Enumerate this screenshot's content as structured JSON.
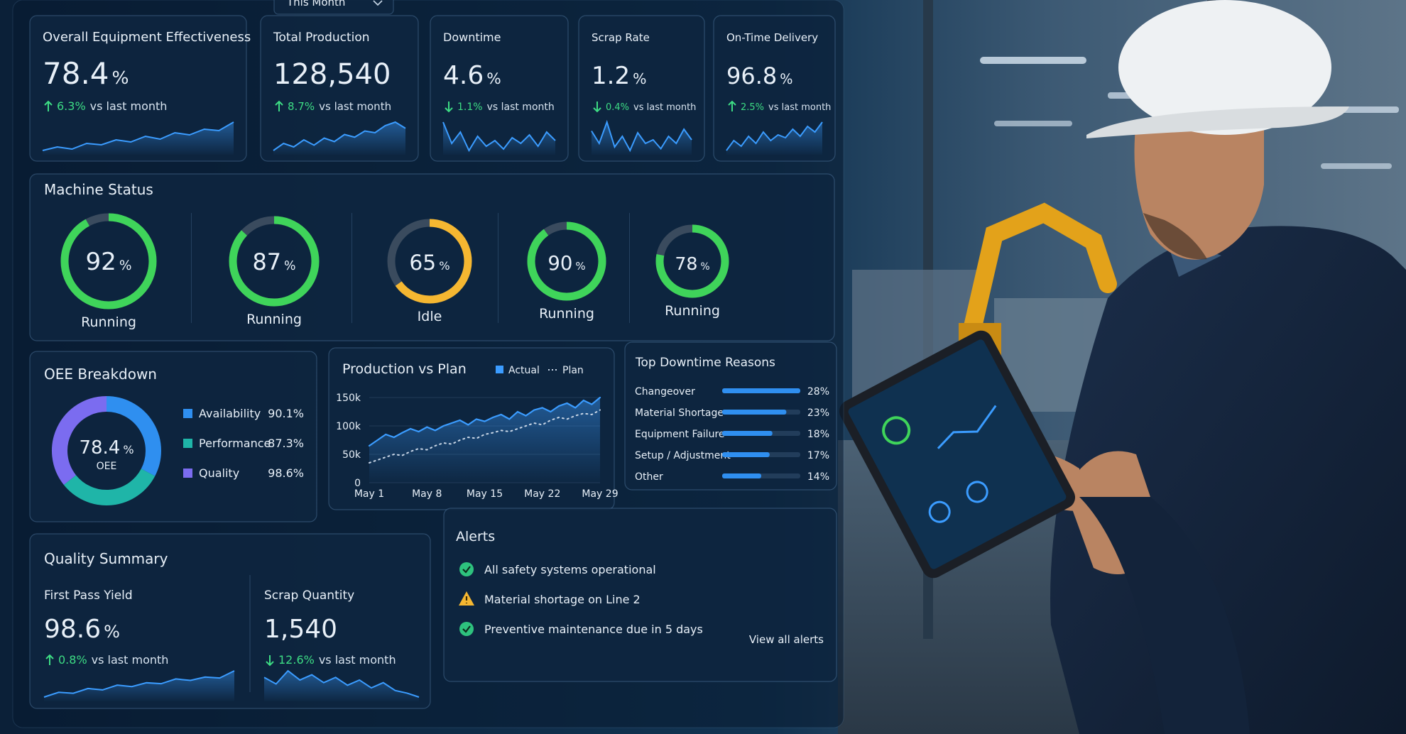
{
  "filter": "This Month",
  "kpis": [
    {
      "title": "Overall Equipment Effectiveness",
      "value": "78.4",
      "unit": "%",
      "change": "6.3%",
      "direction": "up",
      "note": "vs last month",
      "spark": [
        30,
        35,
        32,
        40,
        38,
        45,
        42,
        50,
        46,
        55,
        52,
        60,
        58,
        70
      ]
    },
    {
      "title": "Total Production",
      "value": "128,540",
      "change": "8.7%",
      "direction": "up",
      "note": "vs last month",
      "spark": [
        30,
        38,
        34,
        42,
        36,
        44,
        40,
        48,
        45,
        52,
        50,
        58,
        62,
        55
      ]
    },
    {
      "title": "Downtime",
      "value": "4.6",
      "unit": "%",
      "change": "1.1%",
      "direction": "down",
      "note": "vs last month",
      "spark": [
        55,
        40,
        48,
        35,
        45,
        38,
        42,
        36,
        44,
        40,
        46,
        38,
        48,
        42
      ]
    },
    {
      "title": "Scrap Rate",
      "value": "1.2",
      "unit": "%",
      "change": "0.4%",
      "direction": "down",
      "note": "vs last month",
      "spark": [
        45,
        38,
        50,
        36,
        42,
        34,
        44,
        38,
        40,
        35,
        42,
        38,
        46,
        40
      ]
    },
    {
      "title": "On-Time Delivery",
      "value": "96.8",
      "unit": "%",
      "change": "2.5%",
      "direction": "up",
      "note": "vs last month",
      "spark": [
        35,
        42,
        38,
        45,
        40,
        48,
        42,
        46,
        44,
        50,
        45,
        52,
        48,
        55
      ]
    }
  ],
  "machine_status": {
    "title": "Machine Status",
    "machines": [
      {
        "value": 92,
        "unit": "%",
        "status": "Running",
        "color": "#3fd45a"
      },
      {
        "value": 87,
        "unit": "%",
        "status": "Running",
        "color": "#3fd45a"
      },
      {
        "value": 65,
        "unit": "%",
        "status": "Idle",
        "color": "#f5b731"
      },
      {
        "value": 90,
        "unit": "%",
        "status": "Running",
        "color": "#3fd45a"
      },
      {
        "value": 78,
        "unit": "%",
        "status": "Running",
        "color": "#3fd45a"
      }
    ]
  },
  "oee_breakdown": {
    "title": "OEE Breakdown",
    "center_value": "78.4",
    "center_unit": "%",
    "center_label": "OEE",
    "items": [
      {
        "name": "Availability",
        "value": 90.1,
        "value_label": "90.1%",
        "color": "#2f8ff0"
      },
      {
        "name": "Performance",
        "value": 87.3,
        "value_label": "87.3%",
        "color": "#1fb5a8"
      },
      {
        "name": "Quality",
        "value": 98.6,
        "value_label": "98.6%",
        "color": "#7b6cf0"
      }
    ]
  },
  "production_vs_plan": {
    "chart_data": {
      "type": "line",
      "title": "Production vs Plan",
      "categories": [
        "May 1",
        null,
        null,
        null,
        null,
        null,
        null,
        "May 8",
        null,
        null,
        null,
        null,
        null,
        null,
        "May 15",
        null,
        null,
        null,
        null,
        null,
        null,
        "May 22",
        null,
        null,
        null,
        null,
        null,
        null,
        "May 29"
      ],
      "series": [
        {
          "name": "Actual",
          "color": "#3b9cff",
          "values": [
            65000,
            75000,
            85000,
            80000,
            88000,
            95000,
            90000,
            98000,
            92000,
            100000,
            105000,
            110000,
            102000,
            112000,
            108000,
            115000,
            120000,
            112000,
            125000,
            118000,
            128000,
            132000,
            125000,
            135000,
            140000,
            132000,
            145000,
            138000,
            150000
          ]
        },
        {
          "name": "Plan",
          "color": "#c9d6e6",
          "line_style": "dotted",
          "values": [
            35000,
            40000,
            45000,
            50000,
            48000,
            55000,
            60000,
            58000,
            65000,
            70000,
            68000,
            75000,
            80000,
            78000,
            85000,
            88000,
            92000,
            90000,
            95000,
            100000,
            105000,
            102000,
            110000,
            115000,
            112000,
            118000,
            122000,
            120000,
            128000
          ]
        }
      ],
      "ylim": [
        0,
        160000
      ],
      "yticks": [
        0,
        {
          "value": 50000,
          "label": "50k"
        },
        {
          "value": 100000,
          "label": "100k"
        },
        {
          "value": 150000,
          "label": "150k"
        }
      ],
      "grid": true,
      "legend": "top-right"
    }
  },
  "downtime_reasons": {
    "title": "Top Downtime Reasons",
    "color": "#2f8ff0",
    "categories": [
      "Changeover",
      "Material Shortage",
      "Equipment Failure",
      "Setup / Adjustment",
      "Other"
    ],
    "values": [
      28,
      23,
      18,
      17,
      14
    ],
    "value_labels": [
      "28%",
      "23%",
      "18%",
      "17%",
      "14%"
    ]
  },
  "quality_summary": {
    "title": "Quality Summary",
    "metrics": [
      {
        "title": "First Pass Yield",
        "value": "98.6",
        "unit": "%",
        "change": "0.8%",
        "direction": "up",
        "note": "vs last month",
        "spark": [
          20,
          30,
          28,
          38,
          35,
          45,
          42,
          50,
          48,
          58,
          55,
          62,
          60,
          75
        ]
      },
      {
        "title": "Scrap Quantity",
        "value": "1,540",
        "change": "12.6%",
        "direction": "down",
        "note": "vs last month",
        "spark": [
          50,
          45,
          55,
          48,
          52,
          46,
          50,
          44,
          48,
          42,
          46,
          40,
          38,
          35
        ]
      }
    ]
  },
  "alerts": {
    "title": "Alerts",
    "items": [
      {
        "text": "All safety systems operational",
        "status": "ok"
      },
      {
        "text": "Material shortage on Line 2",
        "status": "warning"
      },
      {
        "text": "Preventive maintenance due in 5 days",
        "status": "ok"
      }
    ],
    "link": "View all alerts"
  }
}
